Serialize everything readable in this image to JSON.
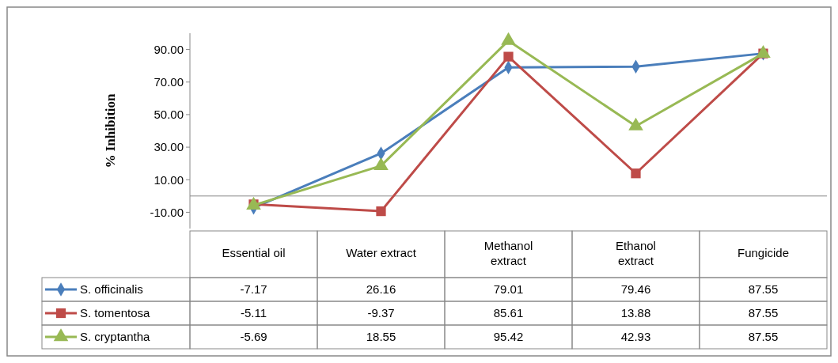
{
  "chart_data": {
    "type": "line",
    "ylabel": "% Inhibition",
    "categories": [
      "Essential oil",
      "Water extract",
      "Methanol extract",
      "Ethanol extract",
      "Fungicide"
    ],
    "series": [
      {
        "name": "S. officinalis",
        "color": "#4a7ebb",
        "marker": "diamond",
        "values": [
          -7.17,
          26.16,
          79.01,
          79.46,
          87.55
        ]
      },
      {
        "name": "S. tomentosa",
        "color": "#be4b48",
        "marker": "square",
        "values": [
          -5.11,
          -9.37,
          85.61,
          13.88,
          87.55
        ]
      },
      {
        "name": "S. cryptantha",
        "color": "#98b954",
        "marker": "triangle",
        "values": [
          -5.69,
          18.55,
          95.42,
          42.93,
          87.55
        ]
      }
    ],
    "ylim": [
      -20,
      100
    ],
    "yticks": [
      {
        "value": -10,
        "label": "-10.00"
      },
      {
        "value": 10,
        "label": "10.00"
      },
      {
        "value": 30,
        "label": "30.00"
      },
      {
        "value": 50,
        "label": "50.00"
      },
      {
        "value": 70,
        "label": "70.00"
      },
      {
        "value": 90,
        "label": "90.00"
      }
    ],
    "data_labels": true,
    "legend": "bottom left",
    "grid": false
  }
}
